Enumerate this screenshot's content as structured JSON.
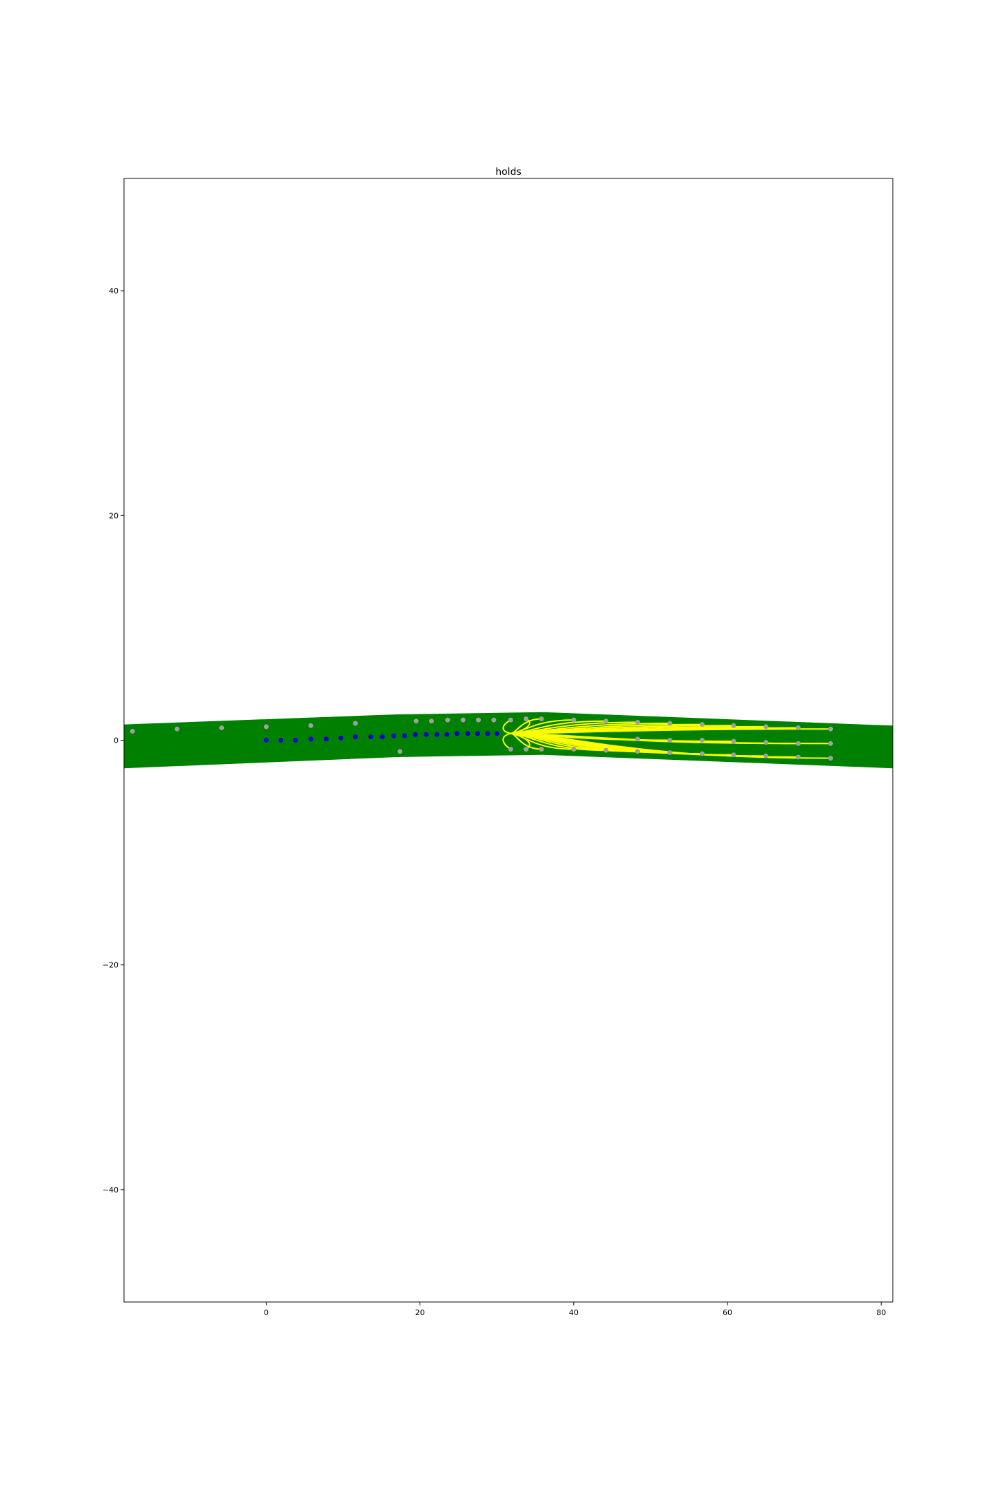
{
  "chart_data": {
    "type": "scatter",
    "title": "holds",
    "xlabel": "",
    "ylabel": "",
    "xlim": [
      -18.5,
      81.5
    ],
    "ylim": [
      -50,
      50
    ],
    "grid": false,
    "x_ticks": [
      0,
      20,
      40,
      60,
      80
    ],
    "y_ticks": [
      -40,
      -20,
      0,
      20,
      40
    ],
    "x_tick_labels": [
      "0",
      "20",
      "40",
      "60",
      "80"
    ],
    "y_tick_labels": [
      "−40",
      "−20",
      "0",
      "20",
      "40"
    ],
    "colors": {
      "band": "#008000",
      "hold_points": "#a0a0a0",
      "path_points": "#0000cc",
      "trajectories": "#ffff00"
    },
    "band": {
      "upper": [
        [
          -18.5,
          1.4
        ],
        [
          17,
          2.3
        ],
        [
          36,
          2.5
        ],
        [
          81.5,
          1.3
        ]
      ],
      "lower": [
        [
          -18.5,
          -2.5
        ],
        [
          17,
          -1.5
        ],
        [
          36,
          -1.3
        ],
        [
          81.5,
          -2.5
        ]
      ]
    },
    "series": [
      {
        "role": "holds",
        "points": [
          [
            -17.4,
            0.8
          ],
          [
            -11.6,
            1.0
          ],
          [
            -5.8,
            1.1
          ],
          [
            0,
            1.2
          ],
          [
            5.8,
            1.3
          ],
          [
            11.6,
            1.5
          ],
          [
            17.4,
            -1.0
          ],
          [
            19.5,
            1.7
          ],
          [
            21.5,
            1.7
          ],
          [
            23.6,
            1.8
          ],
          [
            25.6,
            1.8
          ],
          [
            27.6,
            1.8
          ],
          [
            29.6,
            1.8
          ],
          [
            31.8,
            1.8
          ],
          [
            33.8,
            1.9
          ],
          [
            35.8,
            1.9
          ],
          [
            31.8,
            -0.8
          ],
          [
            33.8,
            -0.8
          ],
          [
            35.8,
            -0.8
          ],
          [
            40,
            1.8
          ],
          [
            44.2,
            1.7
          ],
          [
            48.3,
            1.6
          ],
          [
            52.5,
            1.5
          ],
          [
            56.7,
            1.4
          ],
          [
            60.8,
            1.3
          ],
          [
            65,
            1.2
          ],
          [
            69.2,
            1.1
          ],
          [
            73.4,
            1.0
          ],
          [
            40,
            -0.8
          ],
          [
            44.2,
            -0.9
          ],
          [
            48.3,
            -1.0
          ],
          [
            52.5,
            -1.1
          ],
          [
            56.7,
            -1.2
          ],
          [
            60.8,
            -1.3
          ],
          [
            65,
            -1.4
          ],
          [
            69.2,
            -1.5
          ],
          [
            73.4,
            -1.6
          ],
          [
            48.3,
            0.1
          ],
          [
            52.5,
            0.0
          ],
          [
            56.7,
            0.0
          ],
          [
            60.8,
            -0.1
          ],
          [
            65,
            -0.2
          ],
          [
            69.2,
            -0.3
          ],
          [
            73.4,
            -0.3
          ]
        ]
      },
      {
        "role": "path",
        "points": [
          [
            0,
            0
          ],
          [
            1.9,
            0
          ],
          [
            3.8,
            0
          ],
          [
            5.8,
            0.1
          ],
          [
            7.8,
            0.1
          ],
          [
            9.7,
            0.2
          ],
          [
            11.6,
            0.3
          ],
          [
            13.6,
            0.3
          ],
          [
            15.1,
            0.3
          ],
          [
            16.6,
            0.4
          ],
          [
            18,
            0.4
          ],
          [
            19.4,
            0.5
          ],
          [
            20.8,
            0.5
          ],
          [
            22.2,
            0.5
          ],
          [
            23.5,
            0.5
          ],
          [
            24.8,
            0.6
          ],
          [
            26.2,
            0.6
          ],
          [
            27.5,
            0.6
          ],
          [
            28.8,
            0.6
          ],
          [
            30,
            0.6
          ]
        ]
      },
      {
        "role": "trajectories",
        "origin": [
          31.8,
          0.6
        ],
        "ends": [
          [
            31.8,
            1.8
          ],
          [
            33.8,
            1.9
          ],
          [
            35.8,
            1.9
          ],
          [
            31.8,
            -0.8
          ],
          [
            33.8,
            -0.8
          ],
          [
            35.8,
            -0.8
          ],
          [
            40,
            1.8
          ],
          [
            44.2,
            1.7
          ],
          [
            48.3,
            1.6
          ],
          [
            52.5,
            1.5
          ],
          [
            56.7,
            1.4
          ],
          [
            60.8,
            1.3
          ],
          [
            65,
            1.2
          ],
          [
            69.2,
            1.1
          ],
          [
            73.4,
            1.0
          ],
          [
            40,
            -0.8
          ],
          [
            44.2,
            -0.9
          ],
          [
            48.3,
            -1.0
          ],
          [
            52.5,
            -1.1
          ],
          [
            56.7,
            -1.2
          ],
          [
            60.8,
            -1.3
          ],
          [
            65,
            -1.4
          ],
          [
            69.2,
            -1.5
          ],
          [
            73.4,
            -1.6
          ],
          [
            52.5,
            0.0
          ],
          [
            60.8,
            -0.1
          ],
          [
            69.2,
            -0.3
          ],
          [
            73.4,
            -0.3
          ]
        ]
      }
    ]
  }
}
